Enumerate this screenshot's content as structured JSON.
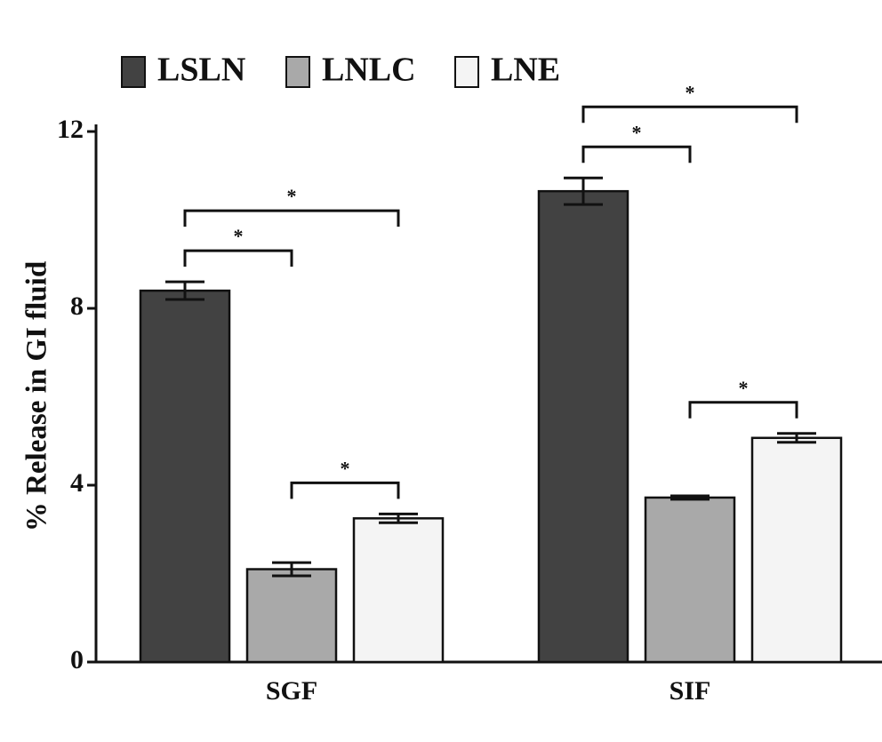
{
  "chart_data": {
    "type": "bar",
    "y_label": "% Release in GI fluid",
    "categories": [
      "SGF",
      "SIF"
    ],
    "series": [
      {
        "name": "LSLN",
        "color": "#424242",
        "values": [
          8.4,
          10.65
        ],
        "errors": [
          0.2,
          0.3
        ]
      },
      {
        "name": "LNLC",
        "color": "#a9a9a9",
        "values": [
          2.1,
          3.72
        ],
        "errors": [
          0.15,
          0.04
        ]
      },
      {
        "name": "LNE",
        "color": "#f4f4f4",
        "values": [
          3.25,
          5.07
        ],
        "errors": [
          0.1,
          0.1
        ]
      }
    ],
    "ylim": [
      0,
      12
    ],
    "yticks": [
      0,
      4,
      8,
      12
    ],
    "legend": "top-left",
    "significance": [
      {
        "category": 0,
        "from": 0,
        "to": 1,
        "label": "*"
      },
      {
        "category": 0,
        "from": 0,
        "to": 2,
        "label": "*"
      },
      {
        "category": 0,
        "from": 1,
        "to": 2,
        "label": "*"
      },
      {
        "category": 1,
        "from": 0,
        "to": 1,
        "label": "*"
      },
      {
        "category": 1,
        "from": 0,
        "to": 2,
        "label": "*"
      },
      {
        "category": 1,
        "from": 1,
        "to": 2,
        "label": "*"
      }
    ]
  }
}
